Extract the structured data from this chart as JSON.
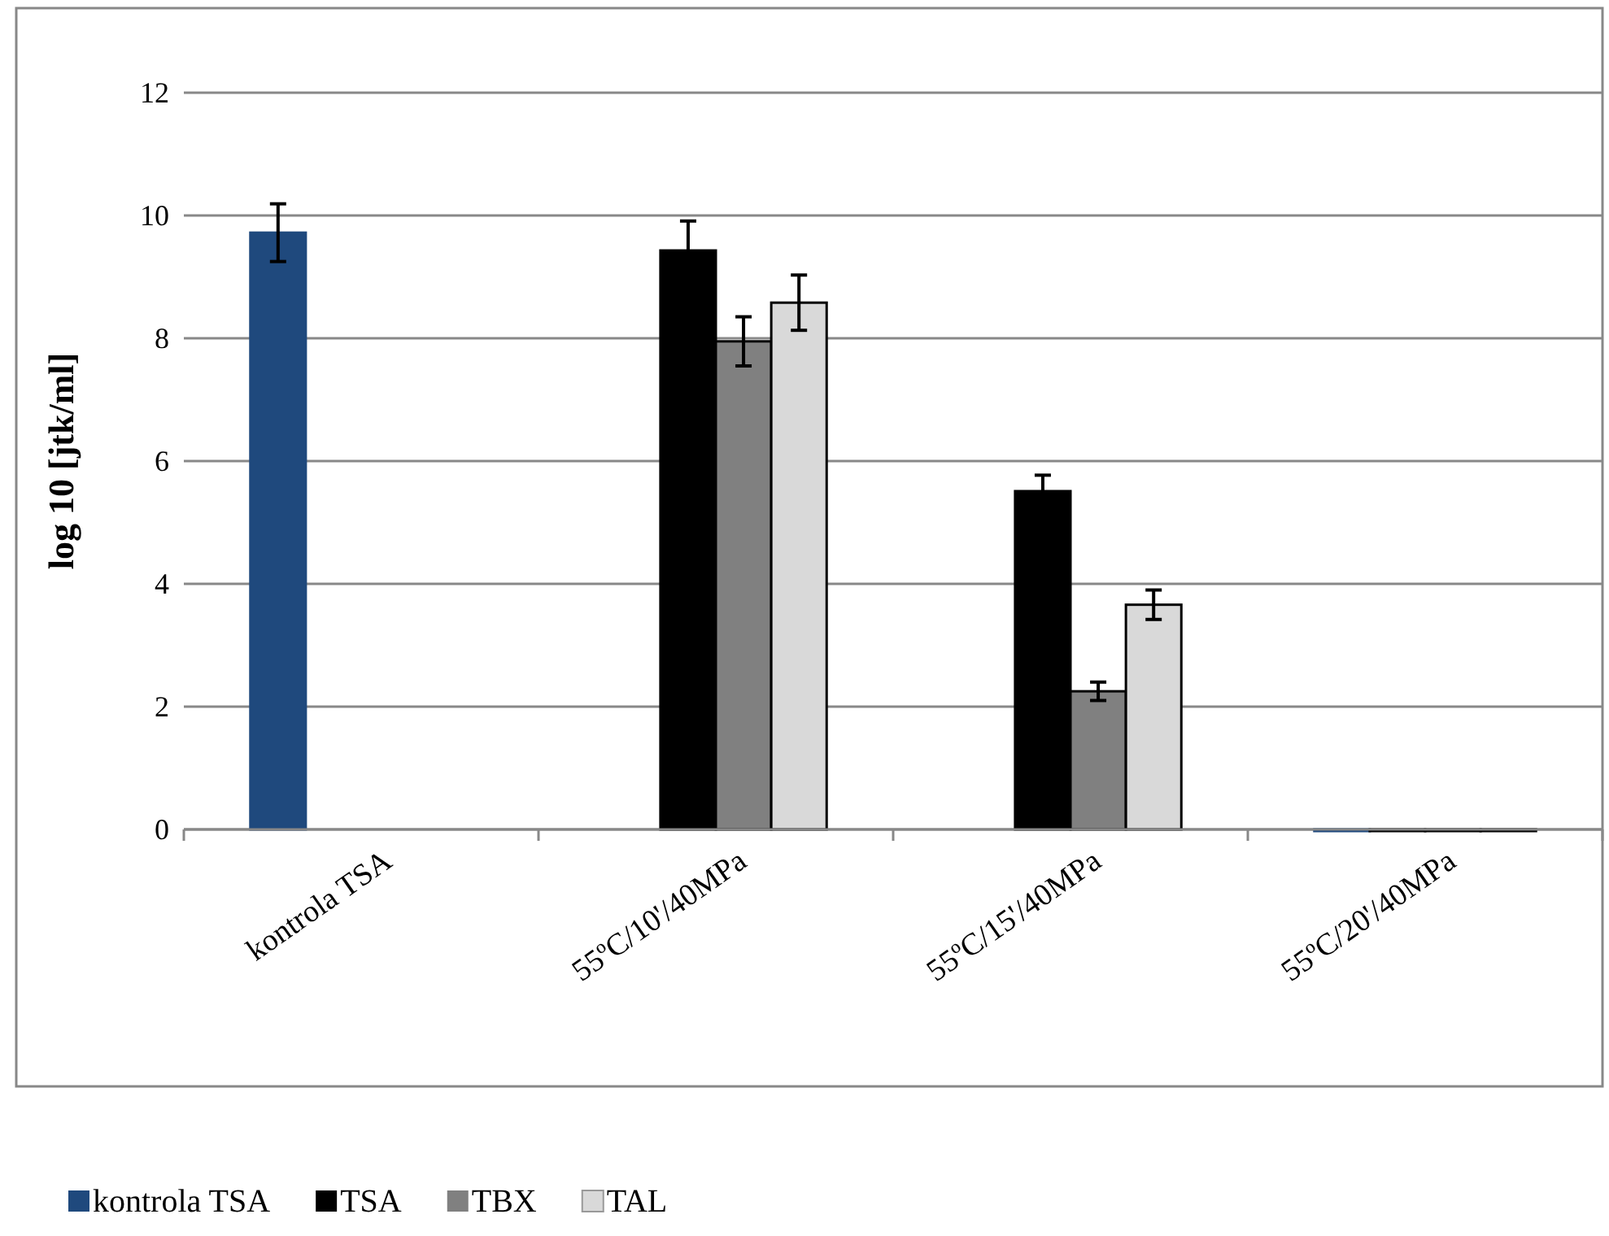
{
  "chart_data": {
    "type": "bar",
    "ylabel": "log 10 [jtk/ml]",
    "categories": [
      "kontrola TSA",
      "55ºC/10'/40MPa",
      "55ºC/15'/40MPa",
      "55ºC/20'/40MPa"
    ],
    "series": [
      {
        "name": "kontrola TSA",
        "color": "#1f497d",
        "values": [
          9.72,
          null,
          null,
          0
        ],
        "errors": [
          0.47,
          null,
          null,
          null
        ]
      },
      {
        "name": "TSA",
        "color": "#000000",
        "values": [
          null,
          9.43,
          5.51,
          0
        ],
        "errors": [
          null,
          0.48,
          0.26,
          null
        ]
      },
      {
        "name": "TBX",
        "color": "#808080",
        "values": [
          null,
          7.95,
          2.25,
          0
        ],
        "errors": [
          null,
          0.4,
          0.15,
          null
        ]
      },
      {
        "name": "TAL",
        "color": "#d9d9d9",
        "values": [
          null,
          8.58,
          3.66,
          0
        ],
        "errors": [
          null,
          0.45,
          0.24,
          null
        ]
      }
    ],
    "ylim": [
      0,
      12
    ],
    "yticks": [
      0,
      2,
      4,
      6,
      8,
      10,
      12
    ],
    "grid": "y",
    "legend": "bottom"
  }
}
